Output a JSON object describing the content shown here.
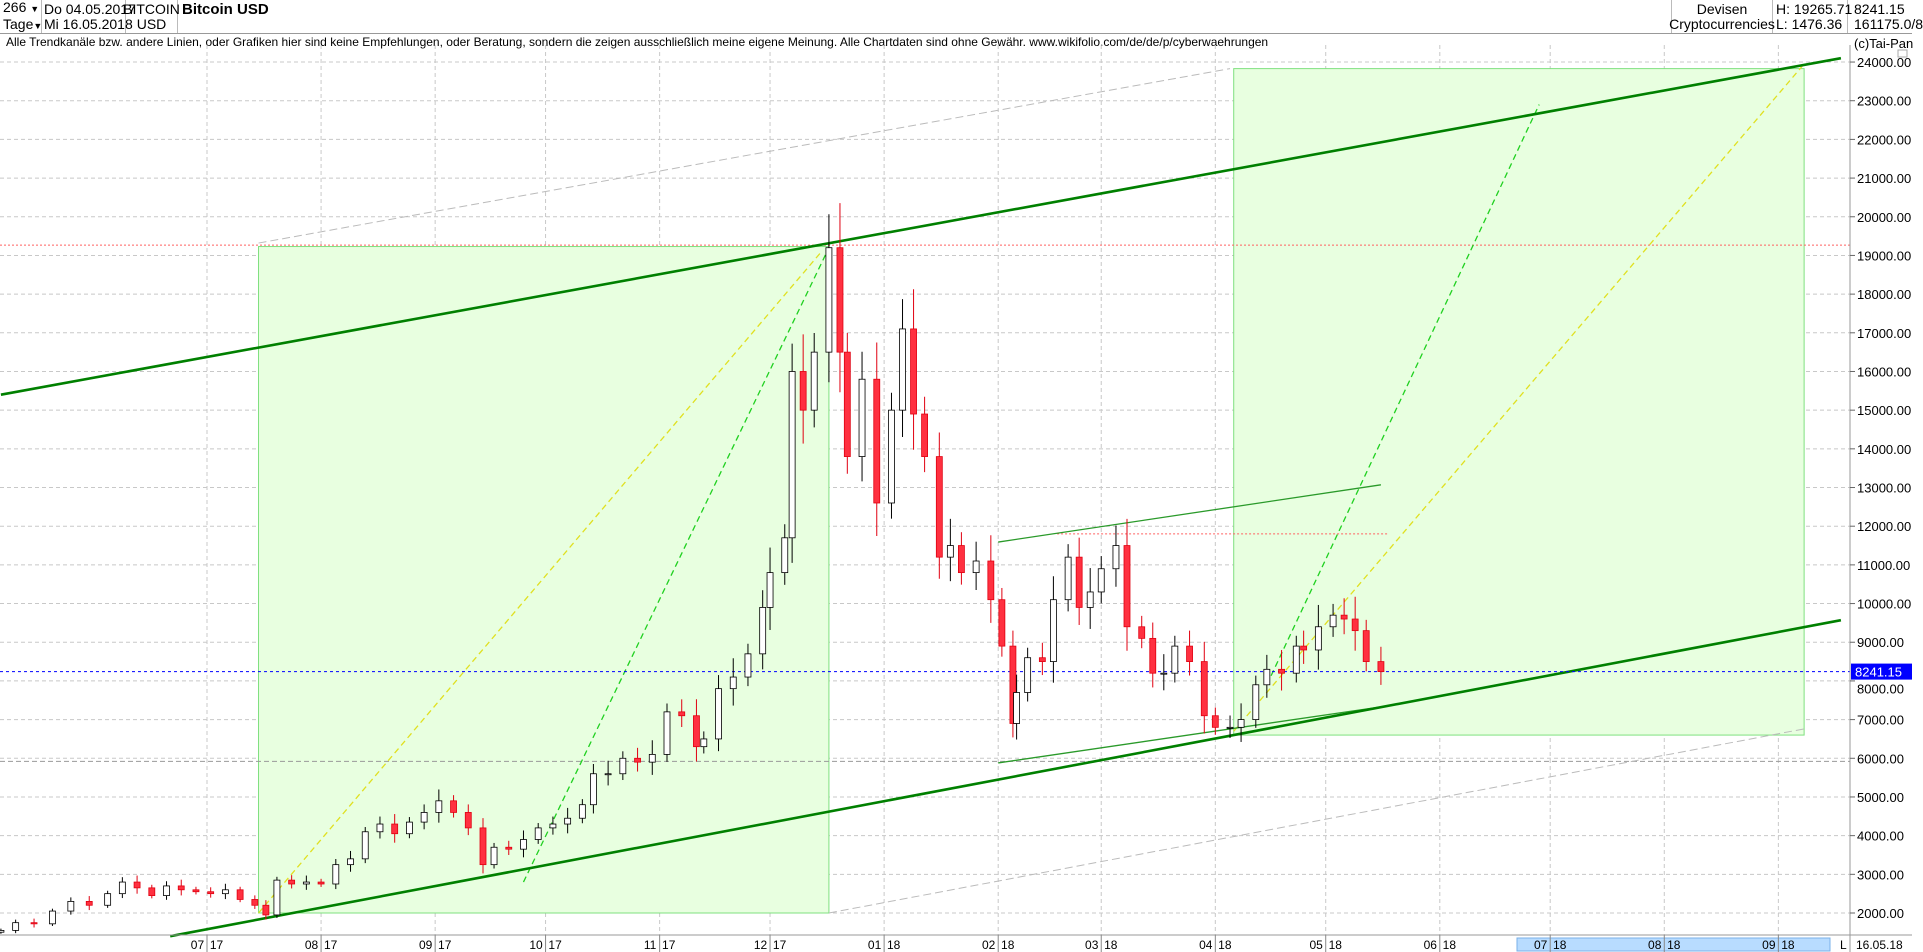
{
  "header": {
    "bars": "266",
    "period": "Tage",
    "from_date": "Do 04.05.2017",
    "to_date": "Mi 16.05.2018",
    "symbol_line1": "BITCOIN",
    "symbol_line2": "USD",
    "title": "Bitcoin USD",
    "group_line1": "Devisen",
    "group_line2": "Cryptocurrencies",
    "high": "H: 19265.71",
    "low": "L: 1476.36",
    "last": "8241.15",
    "volume": "161175.0/8"
  },
  "disclaimer": "Alle Trendkanäle bzw. andere Linien, oder Grafiken hier sind keine Empfehlungen, oder Beratung, sondern die zeigen ausschließlich meine eigene Meinung. Alle Chartdaten sind ohne Gewähr.  www.wikifolio.com/de/de/p/cyberwaehrungen",
  "copyright": "(c)Tai-Pan",
  "footer": {
    "scroll_mode": "L",
    "end_date": "16.05.18"
  },
  "colors": {
    "up": "#ffffff",
    "down": "#ff3040",
    "channel": "#008000",
    "box": "#e8ffe0",
    "last_price": "#0000ff"
  },
  "chart_data": {
    "type": "candlestick",
    "title": "Bitcoin USD",
    "ylim": [
      1500,
      24500
    ],
    "y_ticks": [
      "2000.00",
      "3000.00",
      "4000.00",
      "5000.00",
      "6000.00",
      "7000.00",
      "8000.00",
      "9000.00",
      "10000.00",
      "11000.00",
      "12000.00",
      "13000.00",
      "14000.00",
      "15000.00",
      "16000.00",
      "17000.00",
      "18000.00",
      "19000.00",
      "20000.00",
      "21000.00",
      "22000.00",
      "23000.00",
      "24000.00"
    ],
    "x_ticks": [
      "07/17",
      "08/17",
      "09/17",
      "10/17",
      "11/17",
      "12/17",
      "01/18",
      "02/18",
      "03/18",
      "04/18",
      "05/18",
      "06/18",
      "07/18",
      "08/18",
      "09/18"
    ],
    "x_tick_dates": [
      "2017-07-01",
      "2017-08-01",
      "2017-09-01",
      "2017-10-01",
      "2017-11-01",
      "2017-12-01",
      "2018-01-01",
      "2018-02-01",
      "2018-03-01",
      "2018-04-01",
      "2018-05-01",
      "2018-06-01",
      "2018-07-01",
      "2018-08-01",
      "2018-09-01"
    ],
    "last_price": "8241.15",
    "high_line": 19265.71,
    "closes": [
      [
        "2017-05-06",
        1550
      ],
      [
        "2017-05-10",
        1750
      ],
      [
        "2017-05-15",
        1720
      ],
      [
        "2017-05-20",
        2050
      ],
      [
        "2017-05-25",
        2300
      ],
      [
        "2017-05-30",
        2200
      ],
      [
        "2017-06-04",
        2500
      ],
      [
        "2017-06-08",
        2800
      ],
      [
        "2017-06-12",
        2650
      ],
      [
        "2017-06-16",
        2450
      ],
      [
        "2017-06-20",
        2700
      ],
      [
        "2017-06-24",
        2600
      ],
      [
        "2017-06-28",
        2550
      ],
      [
        "2017-07-02",
        2500
      ],
      [
        "2017-07-06",
        2600
      ],
      [
        "2017-07-10",
        2350
      ],
      [
        "2017-07-14",
        2200
      ],
      [
        "2017-07-17",
        1950
      ],
      [
        "2017-07-20",
        2850
      ],
      [
        "2017-07-24",
        2750
      ],
      [
        "2017-07-28",
        2800
      ],
      [
        "2017-08-01",
        2750
      ],
      [
        "2017-08-05",
        3250
      ],
      [
        "2017-08-09",
        3400
      ],
      [
        "2017-08-13",
        4100
      ],
      [
        "2017-08-17",
        4300
      ],
      [
        "2017-08-21",
        4050
      ],
      [
        "2017-08-25",
        4350
      ],
      [
        "2017-08-29",
        4600
      ],
      [
        "2017-09-02",
        4900
      ],
      [
        "2017-09-06",
        4600
      ],
      [
        "2017-09-10",
        4200
      ],
      [
        "2017-09-14",
        3250
      ],
      [
        "2017-09-17",
        3700
      ],
      [
        "2017-09-21",
        3650
      ],
      [
        "2017-09-25",
        3900
      ],
      [
        "2017-09-29",
        4200
      ],
      [
        "2017-10-03",
        4300
      ],
      [
        "2017-10-07",
        4450
      ],
      [
        "2017-10-11",
        4800
      ],
      [
        "2017-10-14",
        5600
      ],
      [
        "2017-10-18",
        5600
      ],
      [
        "2017-10-22",
        6000
      ],
      [
        "2017-10-26",
        5900
      ],
      [
        "2017-10-30",
        6100
      ],
      [
        "2017-11-03",
        7200
      ],
      [
        "2017-11-07",
        7100
      ],
      [
        "2017-11-11",
        6300
      ],
      [
        "2017-11-13",
        6500
      ],
      [
        "2017-11-17",
        7800
      ],
      [
        "2017-11-21",
        8100
      ],
      [
        "2017-11-25",
        8700
      ],
      [
        "2017-11-29",
        9900
      ],
      [
        "2017-12-01",
        10800
      ],
      [
        "2017-12-05",
        11700
      ],
      [
        "2017-12-07",
        16000
      ],
      [
        "2017-12-10",
        15000
      ],
      [
        "2017-12-13",
        16500
      ],
      [
        "2017-12-17",
        19200
      ],
      [
        "2017-12-20",
        16500
      ],
      [
        "2017-12-22",
        13800
      ],
      [
        "2017-12-26",
        15800
      ],
      [
        "2017-12-30",
        12600
      ],
      [
        "2018-01-03",
        15000
      ],
      [
        "2018-01-06",
        17100
      ],
      [
        "2018-01-09",
        14900
      ],
      [
        "2018-01-12",
        13800
      ],
      [
        "2018-01-16",
        11200
      ],
      [
        "2018-01-19",
        11500
      ],
      [
        "2018-01-22",
        10800
      ],
      [
        "2018-01-26",
        11100
      ],
      [
        "2018-01-30",
        10100
      ],
      [
        "2018-02-02",
        8900
      ],
      [
        "2018-02-05",
        6900
      ],
      [
        "2018-02-06",
        7700
      ],
      [
        "2018-02-09",
        8600
      ],
      [
        "2018-02-13",
        8500
      ],
      [
        "2018-02-16",
        10100
      ],
      [
        "2018-02-20",
        11200
      ],
      [
        "2018-02-23",
        9900
      ],
      [
        "2018-02-26",
        10300
      ],
      [
        "2018-03-01",
        10900
      ],
      [
        "2018-03-05",
        11500
      ],
      [
        "2018-03-08",
        9400
      ],
      [
        "2018-03-12",
        9100
      ],
      [
        "2018-03-15",
        8200
      ],
      [
        "2018-03-18",
        8200
      ],
      [
        "2018-03-21",
        8900
      ],
      [
        "2018-03-25",
        8500
      ],
      [
        "2018-03-29",
        7100
      ],
      [
        "2018-04-01",
        6800
      ],
      [
        "2018-04-05",
        6800
      ],
      [
        "2018-04-08",
        7000
      ],
      [
        "2018-04-12",
        7900
      ],
      [
        "2018-04-15",
        8300
      ],
      [
        "2018-04-19",
        8200
      ],
      [
        "2018-04-23",
        8900
      ],
      [
        "2018-04-25",
        8800
      ],
      [
        "2018-04-29",
        9400
      ],
      [
        "2018-05-03",
        9700
      ],
      [
        "2018-05-06",
        9600
      ],
      [
        "2018-05-09",
        9300
      ],
      [
        "2018-05-12",
        8500
      ],
      [
        "2018-05-16",
        8241.15
      ]
    ],
    "drawings": {
      "thick_lines": [
        [
          [
            "2017-05-06",
            15400
          ],
          [
            "2018-09-18",
            24100
          ]
        ],
        [
          [
            "2017-06-21",
            1400
          ],
          [
            "2018-09-18",
            9570
          ]
        ]
      ],
      "thin_lines": [
        [
          [
            "2018-02-01",
            11590
          ],
          [
            "2018-05-16",
            13070
          ]
        ],
        [
          [
            "2018-02-01",
            5880
          ],
          [
            "2018-05-16",
            7330
          ]
        ]
      ],
      "gray_dashed": [
        [
          [
            "2017-07-15",
            19320
          ],
          [
            "2018-04-05",
            23830
          ]
        ],
        [
          [
            "2017-12-17",
            2000
          ],
          [
            "2018-09-08",
            6760
          ]
        ]
      ],
      "boxes": [
        [
          [
            "2017-07-15",
            19230
          ],
          [
            "2017-12-17",
            2000
          ]
        ],
        [
          [
            "2018-04-06",
            23830
          ],
          [
            "2018-09-08",
            6600
          ]
        ]
      ],
      "green_dashed": [
        [
          [
            "2017-09-25",
            2800
          ],
          [
            "2017-12-17",
            19200
          ]
        ],
        [
          [
            "2018-04-15",
            7900
          ],
          [
            "2018-06-28",
            22900
          ]
        ]
      ],
      "yellow_dashed": [
        [
          [
            "2017-07-15",
            2000
          ],
          [
            "2017-12-15",
            19100
          ]
        ],
        [
          [
            "2018-04-06",
            6700
          ],
          [
            "2018-09-08",
            23950
          ]
        ]
      ],
      "red_dotted": [
        [
          "2018-02-17",
          11800
        ],
        [
          "2018-05-18",
          11800
        ]
      ]
    }
  }
}
